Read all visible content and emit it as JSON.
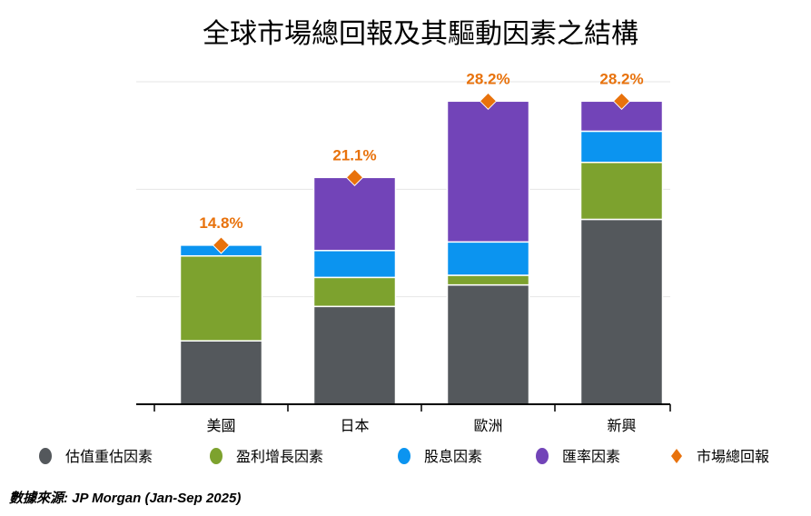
{
  "chart_data": {
    "type": "bar",
    "stacked": true,
    "title": "全球市場總回報及其驅動因素之結構",
    "categories": [
      "美國",
      "日本",
      "歐洲",
      "新興"
    ],
    "ylim": [
      0,
      30
    ],
    "grid": true,
    "legend_position": "bottom",
    "series": [
      {
        "name": "估值重估因素",
        "color": "#54585c",
        "values": [
          5.9,
          9.1,
          11.1,
          17.2
        ]
      },
      {
        "name": "盈利增長因素",
        "color": "#7da22e",
        "values": [
          7.9,
          2.7,
          0.9,
          5.3
        ]
      },
      {
        "name": "股息因素",
        "color": "#0b94f0",
        "values": [
          1.0,
          2.5,
          3.1,
          2.9
        ]
      },
      {
        "name": "匯率因素",
        "color": "#7244b8",
        "values": [
          0.0,
          6.8,
          13.1,
          2.8
        ]
      }
    ],
    "total": {
      "name": "市場總回報",
      "color": "#e8720c",
      "values": [
        14.8,
        21.1,
        28.2,
        28.2
      ],
      "labels": [
        "14.8%",
        "21.1%",
        "28.2%",
        "28.2%"
      ]
    },
    "source": "數據來源: JP Morgan (Jan-Sep 2025)"
  }
}
